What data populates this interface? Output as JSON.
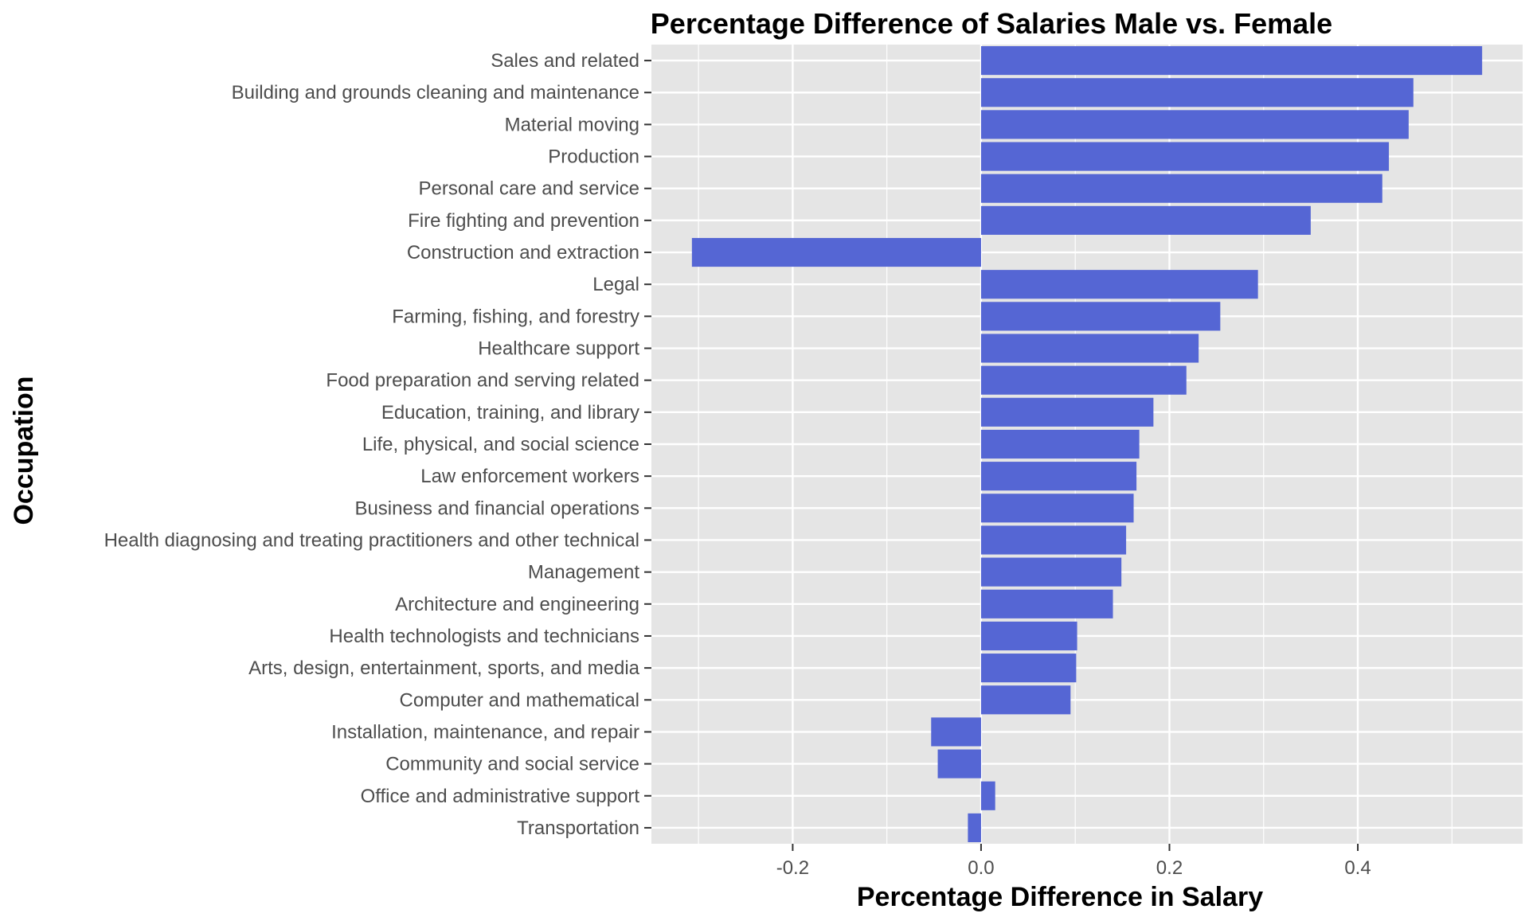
{
  "chart_data": {
    "type": "bar",
    "orientation": "horizontal",
    "title": "Percentage Difference of Salaries Male vs. Female",
    "xlabel": "Percentage Difference in Salary",
    "ylabel": "Occupation",
    "xlim": [
      -0.35,
      0.575
    ],
    "x_ticks": [
      -0.2,
      0.0,
      0.2,
      0.4
    ],
    "x_tick_labels": [
      "-0.2",
      "0.0",
      "0.2",
      "0.4"
    ],
    "grid": true,
    "bar_color": "#5566d4",
    "panel_color": "#e5e5e5",
    "grid_color": "#ffffff",
    "categories": [
      "Sales and related",
      "Building and grounds cleaning and maintenance",
      "Material moving",
      "Production",
      "Personal care and service",
      "Fire fighting and prevention",
      "Construction and extraction",
      "Legal",
      "Farming, fishing, and forestry",
      "Healthcare support",
      "Food preparation and serving related",
      "Education, training, and library",
      "Life, physical, and social science",
      "Law enforcement workers",
      "Business and financial operations",
      "Health diagnosing and treating practitioners and other technical",
      "Management",
      "Architecture and engineering",
      "Health technologists and technicians",
      "Arts, design, entertainment, sports, and media",
      "Computer and mathematical",
      "Installation, maintenance, and repair",
      "Community and social service",
      "Office and administrative support",
      "Transportation"
    ],
    "values": [
      0.532,
      0.459,
      0.454,
      0.433,
      0.426,
      0.35,
      -0.307,
      0.294,
      0.254,
      0.231,
      0.218,
      0.183,
      0.168,
      0.165,
      0.162,
      0.154,
      0.149,
      0.14,
      0.102,
      0.101,
      0.095,
      -0.053,
      -0.046,
      0.015,
      -0.014
    ]
  }
}
